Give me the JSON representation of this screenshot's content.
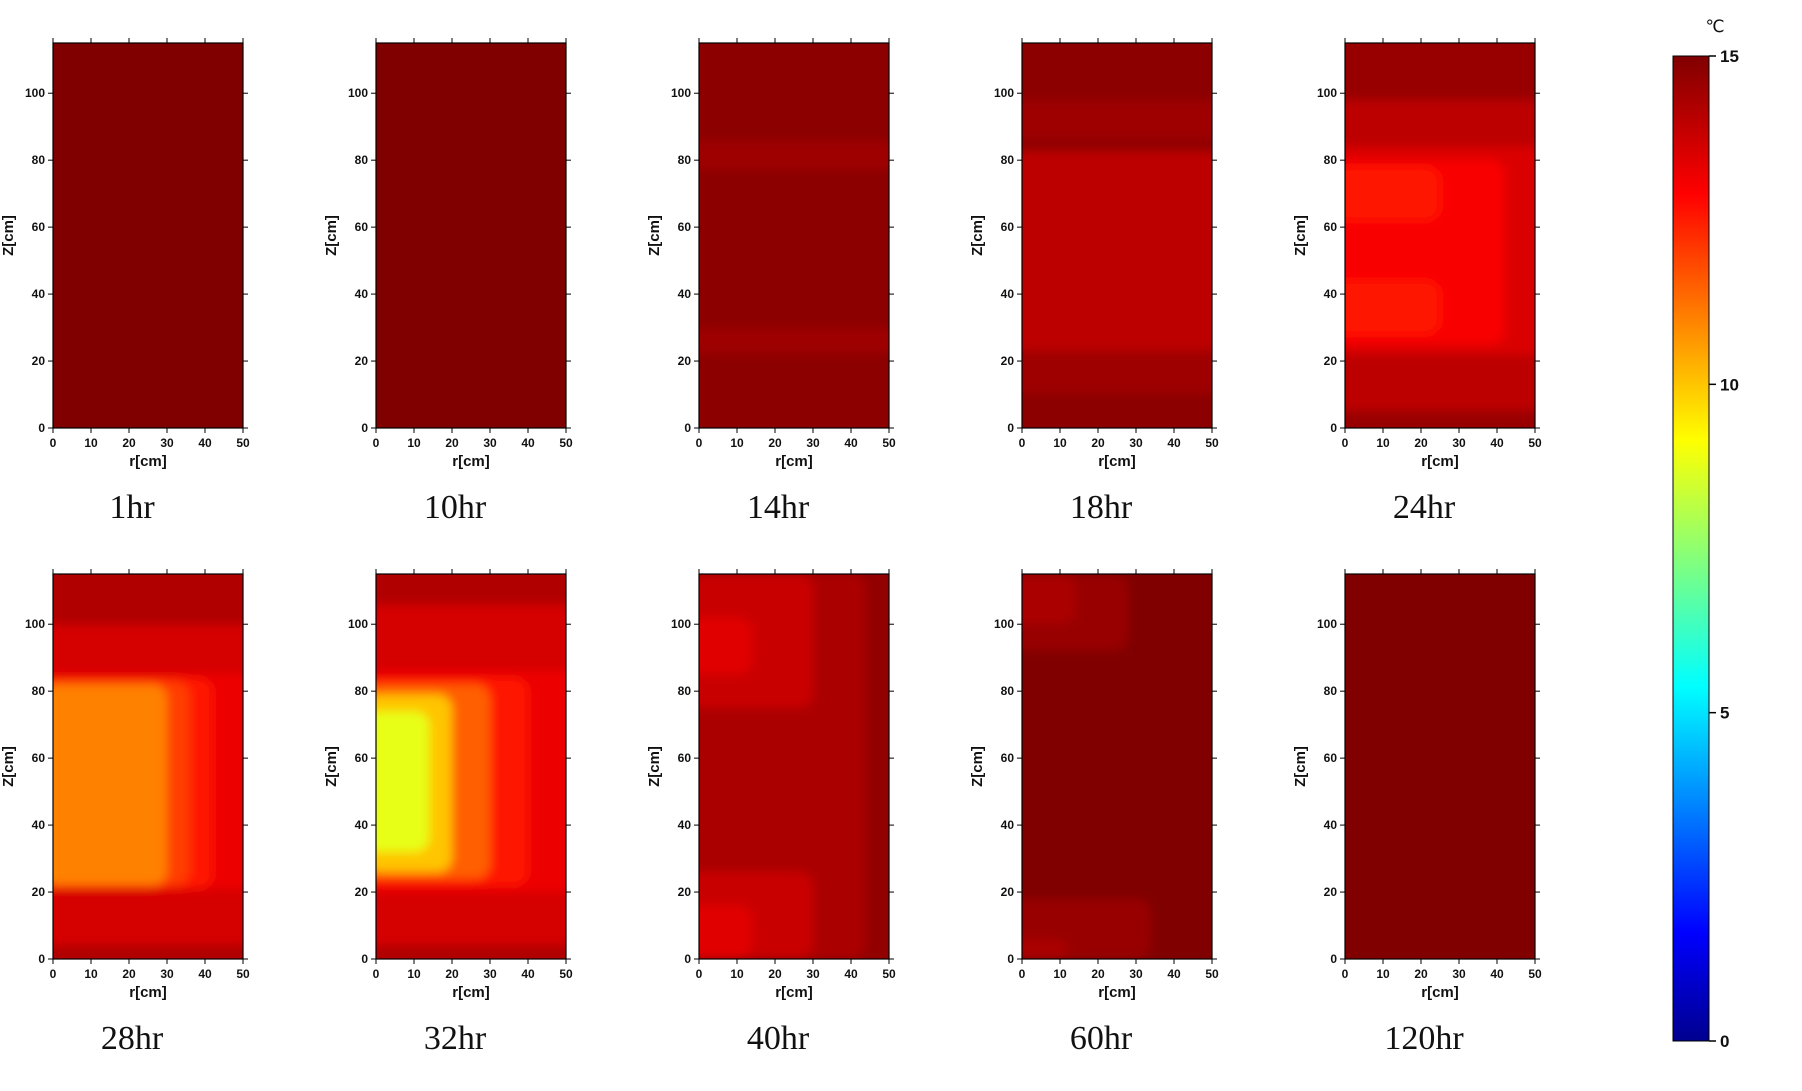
{
  "chart_data": {
    "type": "heatmap",
    "layout": "small-multiples 2x5",
    "colormap": "jet",
    "x": {
      "label": "r[cm]",
      "range": [
        0,
        50
      ],
      "ticks": [
        0,
        10,
        20,
        30,
        40,
        50
      ]
    },
    "y": {
      "label": "Z[cm]",
      "range": [
        0,
        115
      ],
      "ticks": [
        0,
        20,
        40,
        60,
        80,
        100
      ]
    },
    "colorbar": {
      "unit": "℃",
      "range": [
        0,
        15
      ],
      "ticks": [
        0,
        5,
        10,
        15
      ]
    },
    "panels": [
      {
        "label": "1hr",
        "base_temp": 15.0,
        "regions": []
      },
      {
        "label": "10hr",
        "base_temp": 15.0,
        "regions": []
      },
      {
        "label": "14hr",
        "base_temp": 14.8,
        "regions": [
          {
            "r": [
              0,
              50
            ],
            "z": [
              77,
              86
            ],
            "temp": 14.5
          },
          {
            "r": [
              0,
              50
            ],
            "z": [
              22,
              30
            ],
            "temp": 14.5
          }
        ]
      },
      {
        "label": "18hr",
        "base_temp": 14.8,
        "regions": [
          {
            "r": [
              0,
              50
            ],
            "z": [
              86,
              98
            ],
            "temp": 14.5
          },
          {
            "r": [
              0,
              50
            ],
            "z": [
              10,
              24
            ],
            "temp": 14.5
          },
          {
            "r": [
              0,
              50
            ],
            "z": [
              23,
              83
            ],
            "temp": 14.0
          }
        ]
      },
      {
        "label": "24hr",
        "base_temp": 14.6,
        "regions": [
          {
            "r": [
              0,
              50
            ],
            "z": [
              80,
              98
            ],
            "temp": 14.0
          },
          {
            "r": [
              0,
              50
            ],
            "z": [
              5,
              24
            ],
            "temp": 14.0
          },
          {
            "r": [
              0,
              50
            ],
            "z": [
              22,
              84
            ],
            "temp": 13.5
          },
          {
            "r": [
              0,
              42
            ],
            "z": [
              25,
              80
            ],
            "temp": 13.0
          },
          {
            "r": [
              0,
              25
            ],
            "z": [
              62,
              78
            ],
            "temp": 12.6
          },
          {
            "r": [
              0,
              25
            ],
            "z": [
              28,
              44
            ],
            "temp": 12.6
          }
        ]
      },
      {
        "label": "28hr",
        "base_temp": 14.2,
        "regions": [
          {
            "r": [
              0,
              50
            ],
            "z": [
              78,
              100
            ],
            "temp": 13.6
          },
          {
            "r": [
              0,
              50
            ],
            "z": [
              4,
              26
            ],
            "temp": 13.6
          },
          {
            "r": [
              0,
              50
            ],
            "z": [
              21,
              85
            ],
            "temp": 13.2
          },
          {
            "r": [
              0,
              42
            ],
            "z": [
              21,
              84
            ],
            "temp": 12.6
          },
          {
            "r": [
              0,
              36
            ],
            "z": [
              22,
              83
            ],
            "temp": 12.0
          },
          {
            "r": [
              0,
              30
            ],
            "z": [
              22,
              82
            ],
            "temp": 11.0
          }
        ]
      },
      {
        "label": "32hr",
        "base_temp": 14.2,
        "regions": [
          {
            "r": [
              0,
              50
            ],
            "z": [
              80,
              106
            ],
            "temp": 13.6
          },
          {
            "r": [
              0,
              50
            ],
            "z": [
              4,
              28
            ],
            "temp": 13.6
          },
          {
            "r": [
              0,
              50
            ],
            "z": [
              20,
              86
            ],
            "temp": 13.2
          },
          {
            "r": [
              0,
              40
            ],
            "z": [
              22,
              84
            ],
            "temp": 12.6
          },
          {
            "r": [
              0,
              30
            ],
            "z": [
              24,
              82
            ],
            "temp": 11.5
          },
          {
            "r": [
              0,
              20
            ],
            "z": [
              26,
              79
            ],
            "temp": 10.0
          },
          {
            "r": [
              0,
              14
            ],
            "z": [
              32,
              74
            ],
            "temp": 8.8
          }
        ]
      },
      {
        "label": "40hr",
        "base_temp": 14.7,
        "regions": [
          {
            "r": [
              0,
              44
            ],
            "z": [
              0,
              115
            ],
            "temp": 14.3
          },
          {
            "r": [
              0,
              30
            ],
            "z": [
              75,
              115
            ],
            "temp": 13.8
          },
          {
            "r": [
              0,
              14
            ],
            "z": [
              85,
              102
            ],
            "temp": 13.4
          },
          {
            "r": [
              0,
              30
            ],
            "z": [
              0,
              26
            ],
            "temp": 13.8
          },
          {
            "r": [
              0,
              14
            ],
            "z": [
              0,
              16
            ],
            "temp": 13.4
          }
        ]
      },
      {
        "label": "60hr",
        "base_temp": 15.0,
        "regions": [
          {
            "r": [
              0,
              28
            ],
            "z": [
              92,
              115
            ],
            "temp": 14.6
          },
          {
            "r": [
              0,
              14
            ],
            "z": [
              100,
              115
            ],
            "temp": 14.3
          },
          {
            "r": [
              0,
              34
            ],
            "z": [
              0,
              18
            ],
            "temp": 14.6
          },
          {
            "r": [
              0,
              12
            ],
            "z": [
              0,
              6
            ],
            "temp": 14.3
          }
        ]
      },
      {
        "label": "120hr",
        "base_temp": 15.0,
        "regions": []
      }
    ]
  }
}
